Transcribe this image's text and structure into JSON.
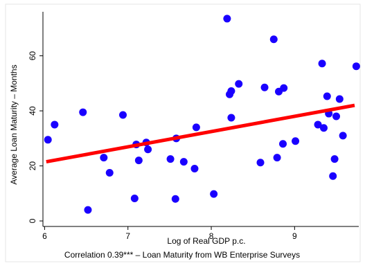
{
  "chart_data": {
    "type": "scatter",
    "xlabel": "Log of Real GDP p.c.",
    "ylabel": "Average Loan Maturity – Months",
    "note": "Correlation 0.39*** – Loan Maturity from WB Enterprise Surveys",
    "xlim": [
      5.98,
      9.77
    ],
    "ylim": [
      -2,
      76
    ],
    "xticks": [
      {
        "value": 6,
        "label": "6"
      },
      {
        "value": 7,
        "label": "7"
      },
      {
        "value": 8,
        "label": "8"
      },
      {
        "value": 9,
        "label": "9"
      }
    ],
    "yticks": [
      {
        "value": 0,
        "label": "0"
      },
      {
        "value": 20,
        "label": "20"
      },
      {
        "value": 40,
        "label": "40"
      },
      {
        "value": 60,
        "label": "60"
      }
    ],
    "grid": false,
    "colors": {
      "points": "#1a00ff",
      "fit_line": "#ff0000",
      "axis": "#000000"
    },
    "fit_line": {
      "x": [
        6.02,
        9.72
      ],
      "y": [
        21.5,
        42.0
      ]
    },
    "points": [
      {
        "x": 6.04,
        "y": 29.5
      },
      {
        "x": 6.12,
        "y": 35.0
      },
      {
        "x": 6.46,
        "y": 39.5
      },
      {
        "x": 6.52,
        "y": 4.0
      },
      {
        "x": 6.71,
        "y": 23.0
      },
      {
        "x": 6.78,
        "y": 17.5
      },
      {
        "x": 6.94,
        "y": 38.5
      },
      {
        "x": 7.08,
        "y": 8.2
      },
      {
        "x": 7.1,
        "y": 27.8
      },
      {
        "x": 7.13,
        "y": 22.0
      },
      {
        "x": 7.22,
        "y": 28.5
      },
      {
        "x": 7.24,
        "y": 26.0
      },
      {
        "x": 7.51,
        "y": 22.5
      },
      {
        "x": 7.57,
        "y": 8.0
      },
      {
        "x": 7.58,
        "y": 30.0
      },
      {
        "x": 7.67,
        "y": 21.5
      },
      {
        "x": 7.8,
        "y": 19.0
      },
      {
        "x": 7.82,
        "y": 34.0
      },
      {
        "x": 8.03,
        "y": 9.8
      },
      {
        "x": 8.19,
        "y": 73.5
      },
      {
        "x": 8.22,
        "y": 46.0
      },
      {
        "x": 8.24,
        "y": 47.2
      },
      {
        "x": 8.24,
        "y": 37.5
      },
      {
        "x": 8.33,
        "y": 49.8
      },
      {
        "x": 8.59,
        "y": 21.2
      },
      {
        "x": 8.64,
        "y": 48.5
      },
      {
        "x": 8.75,
        "y": 66.0
      },
      {
        "x": 8.79,
        "y": 23.0
      },
      {
        "x": 8.81,
        "y": 47.0
      },
      {
        "x": 8.86,
        "y": 28.0
      },
      {
        "x": 8.87,
        "y": 48.3
      },
      {
        "x": 9.01,
        "y": 29.0
      },
      {
        "x": 9.28,
        "y": 35.0
      },
      {
        "x": 9.33,
        "y": 57.2
      },
      {
        "x": 9.35,
        "y": 33.8
      },
      {
        "x": 9.39,
        "y": 45.3
      },
      {
        "x": 9.41,
        "y": 39.0
      },
      {
        "x": 9.46,
        "y": 16.3
      },
      {
        "x": 9.48,
        "y": 22.5
      },
      {
        "x": 9.5,
        "y": 38.0
      },
      {
        "x": 9.54,
        "y": 44.3
      },
      {
        "x": 9.58,
        "y": 31.0
      },
      {
        "x": 9.74,
        "y": 56.2
      }
    ]
  }
}
